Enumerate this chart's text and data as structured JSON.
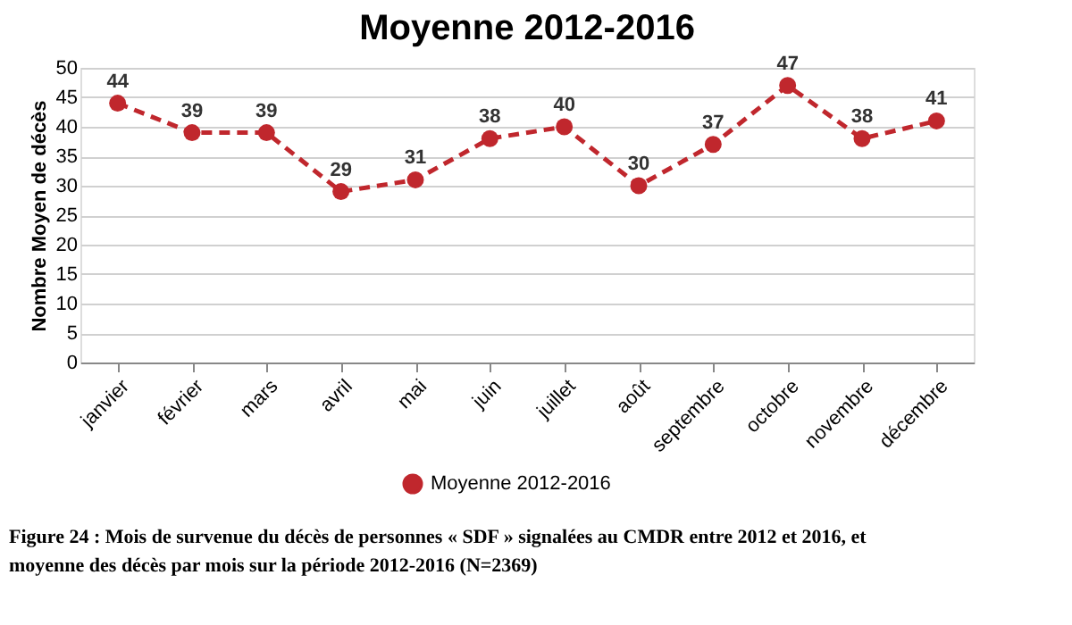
{
  "chart_data": {
    "type": "line",
    "title": "Moyenne 2012-2016",
    "ylabel": "Nombre Moyen de décès",
    "categories": [
      "janvier",
      "février",
      "mars",
      "avril",
      "mai",
      "juin",
      "juillet",
      "août",
      "septembre",
      "octobre",
      "novembre",
      "décembre"
    ],
    "series": [
      {
        "name": "Moyenne 2012-2016",
        "color": "#c0272d",
        "values": [
          44,
          39,
          39,
          29,
          31,
          38,
          40,
          30,
          37,
          47,
          38,
          41
        ]
      }
    ],
    "ylim": [
      0,
      50
    ],
    "yticks": [
      0,
      5,
      10,
      15,
      20,
      25,
      30,
      35,
      40,
      45,
      50
    ],
    "grid": "y",
    "legend": "bottom",
    "marker": "circle",
    "line_style": "dashed",
    "data_labels": true,
    "annotations": [
      "Figure 24 : Mois de survenue du décès de personnes « SDF » signalées au CMDR entre 2012 et 2016, et moyenne des décès par mois sur la période 2012-2016 (N=2369)"
    ]
  }
}
